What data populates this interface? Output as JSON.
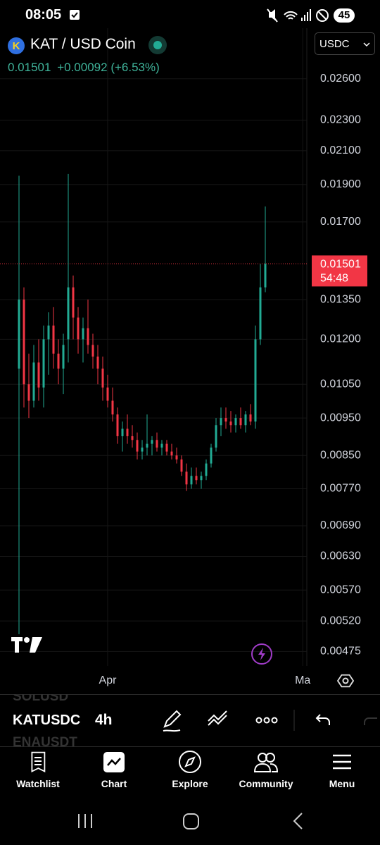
{
  "status_bar": {
    "time": "08:05",
    "battery": "45"
  },
  "header": {
    "symbol": "KAT / USD Coin",
    "last": "0.01501",
    "change": "+0.00092",
    "change_pct": "(+6.53%)",
    "currency": "USDC"
  },
  "chart_data": {
    "type": "candlestick",
    "open": [
      0.011,
      0.0135,
      0.0105,
      0.01,
      0.0112,
      0.0104,
      0.012,
      0.0125,
      0.0115,
      0.011,
      0.012,
      0.014,
      0.0128,
      0.012,
      0.0124,
      0.0118,
      0.0114,
      0.011,
      0.0104,
      0.01,
      0.0096,
      0.009,
      0.0092,
      0.009,
      0.0089,
      0.0086,
      0.0087,
      0.0088,
      0.0089,
      0.0087,
      0.0088,
      0.0086,
      0.0085,
      0.0084,
      0.0081,
      0.0078,
      0.008,
      0.0079,
      0.008,
      0.0083,
      0.0087,
      0.0093,
      0.0095,
      0.0094,
      0.0093,
      0.0095,
      0.0093,
      0.0096,
      0.0094,
      0.012,
      0.014
    ],
    "high": [
      0.0195,
      0.014,
      0.0115,
      0.0118,
      0.012,
      0.0125,
      0.013,
      0.0132,
      0.012,
      0.0122,
      0.0196,
      0.0145,
      0.0132,
      0.0128,
      0.0135,
      0.0122,
      0.0118,
      0.0114,
      0.0108,
      0.0104,
      0.0098,
      0.0094,
      0.0096,
      0.0093,
      0.0091,
      0.0089,
      0.0096,
      0.009,
      0.0091,
      0.0089,
      0.0089,
      0.0088,
      0.0087,
      0.0085,
      0.0083,
      0.0082,
      0.0082,
      0.0081,
      0.0084,
      0.0088,
      0.0095,
      0.0098,
      0.0098,
      0.0097,
      0.0096,
      0.0098,
      0.0097,
      0.0099,
      0.0125,
      0.015,
      0.0178
    ],
    "low": [
      0.005,
      0.0098,
      0.0095,
      0.0098,
      0.01,
      0.0098,
      0.0108,
      0.011,
      0.0105,
      0.0102,
      0.0112,
      0.012,
      0.0115,
      0.0112,
      0.0115,
      0.011,
      0.0105,
      0.01,
      0.0098,
      0.0094,
      0.0088,
      0.0086,
      0.0088,
      0.0087,
      0.0084,
      0.0084,
      0.0085,
      0.0085,
      0.0086,
      0.0085,
      0.0085,
      0.0084,
      0.0083,
      0.008,
      0.00765,
      0.0077,
      0.0078,
      0.0077,
      0.0079,
      0.0082,
      0.0086,
      0.009,
      0.0092,
      0.0091,
      0.0091,
      0.0092,
      0.0091,
      0.0093,
      0.0092,
      0.0118,
      0.0138
    ],
    "close": [
      0.0135,
      0.0105,
      0.01,
      0.0112,
      0.0104,
      0.012,
      0.0125,
      0.0115,
      0.011,
      0.0118,
      0.014,
      0.0128,
      0.012,
      0.0124,
      0.0118,
      0.0114,
      0.011,
      0.0104,
      0.01,
      0.0096,
      0.009,
      0.0092,
      0.009,
      0.0089,
      0.0086,
      0.0087,
      0.0088,
      0.0089,
      0.0087,
      0.0088,
      0.0086,
      0.0085,
      0.0084,
      0.0081,
      0.0078,
      0.008,
      0.0079,
      0.008,
      0.0083,
      0.0087,
      0.0093,
      0.0095,
      0.0094,
      0.0093,
      0.0095,
      0.0093,
      0.0096,
      0.0094,
      0.012,
      0.014,
      0.01501
    ],
    "xlim": [
      -3.857,
      58.43
    ],
    "xticks": [
      {
        "value": 18,
        "label": "Apr"
      },
      {
        "value": 57.6,
        "label": "Ma"
      }
    ],
    "ylim": [
      0.00455,
      0.0275
    ],
    "log_scale": true,
    "grid": true,
    "yticks": [
      {
        "value": 0.026,
        "label": "0.02600"
      },
      {
        "value": 0.023,
        "label": "0.02300"
      },
      {
        "value": 0.021,
        "label": "0.02100"
      },
      {
        "value": 0.019,
        "label": "0.01900"
      },
      {
        "value": 0.017,
        "label": "0.01700"
      },
      {
        "value": 0.0135,
        "label": "0.01350"
      },
      {
        "value": 0.012,
        "label": "0.01200"
      },
      {
        "value": 0.0105,
        "label": "0.01050"
      },
      {
        "value": 0.0095,
        "label": "0.00950"
      },
      {
        "value": 0.0085,
        "label": "0.00850"
      },
      {
        "value": 0.0077,
        "label": "0.00770"
      },
      {
        "value": 0.0069,
        "label": "0.00690"
      },
      {
        "value": 0.0063,
        "label": "0.00630"
      },
      {
        "value": 0.0057,
        "label": "0.00570"
      },
      {
        "value": 0.0052,
        "label": "0.00520"
      },
      {
        "value": 0.00475,
        "label": "0.00475"
      }
    ],
    "last_price": {
      "value": 0.01501,
      "label": "0.01501",
      "countdown": "54:48"
    },
    "up_color": "#22ab94",
    "down_color": "#f23645"
  },
  "toolbar": {
    "symbols": [
      "SOLUSD",
      "KATUSDC",
      "ENAUSDT"
    ],
    "interval": "4h"
  },
  "nav": [
    "Watchlist",
    "Chart",
    "Explore",
    "Community",
    "Menu"
  ]
}
